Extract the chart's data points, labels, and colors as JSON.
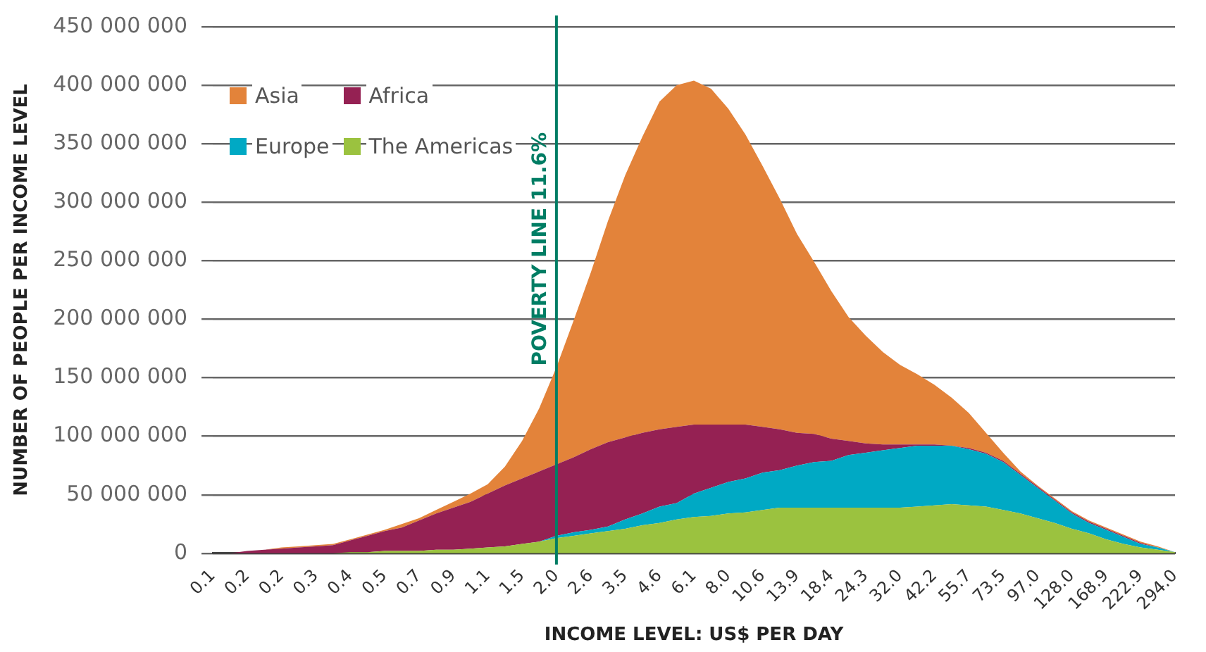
{
  "chart_data": {
    "type": "area",
    "ylabel": "NUMBER OF PEOPLE PER INCOME LEVEL",
    "xlabel": "INCOME LEVEL: US$ PER DAY",
    "categories": [
      "0.1",
      null,
      "0.2",
      null,
      "0.2",
      null,
      "0.3",
      null,
      "0.4",
      null,
      "0.5",
      null,
      "0.7",
      null,
      "0.9",
      null,
      "1.1",
      null,
      "1.5",
      null,
      "2.0",
      null,
      "2.6",
      null,
      "3.5",
      null,
      "4.6",
      null,
      "6.1",
      null,
      "8.0",
      null,
      "10.6",
      null,
      "13.9",
      null,
      "18.4",
      null,
      "24.3",
      null,
      "32.0",
      null,
      "42.2",
      null,
      "55.7",
      null,
      "73.5",
      null,
      "97.0",
      null,
      "128.0",
      null,
      "168.9",
      null,
      "222.9",
      null,
      "294.0"
    ],
    "stacked": true,
    "series": [
      {
        "name": "The Americas",
        "color": "#9bc23f",
        "values": [
          0,
          0,
          0,
          0,
          0,
          0,
          0,
          0,
          1000000,
          1000000,
          2000000,
          2000000,
          2000000,
          3000000,
          3000000,
          4000000,
          5000000,
          6000000,
          8000000,
          10000000,
          13000000,
          15000000,
          17000000,
          19000000,
          21000000,
          24000000,
          26000000,
          29000000,
          31000000,
          32000000,
          34000000,
          35000000,
          37000000,
          39000000,
          39000000,
          39000000,
          39000000,
          39000000,
          39000000,
          39000000,
          39000000,
          40000000,
          41000000,
          42000000,
          41000000,
          40000000,
          37000000,
          34000000,
          30000000,
          26000000,
          21000000,
          17000000,
          12000000,
          8000000,
          5000000,
          3000000,
          1000000
        ]
      },
      {
        "name": "Europe",
        "color": "#00a9c4",
        "values": [
          0,
          0,
          0,
          0,
          0,
          0,
          0,
          0,
          0,
          0,
          0,
          0,
          0,
          0,
          0,
          0,
          0,
          0,
          0,
          0,
          2000000,
          3000000,
          3000000,
          4000000,
          8000000,
          10000000,
          14000000,
          14000000,
          20000000,
          24000000,
          27000000,
          29000000,
          32000000,
          32000000,
          36000000,
          39000000,
          40000000,
          45000000,
          47000000,
          49000000,
          51000000,
          52000000,
          51000000,
          50000000,
          48000000,
          45000000,
          41000000,
          33000000,
          26000000,
          19000000,
          13000000,
          9000000,
          8000000,
          6000000,
          3000000,
          2000000,
          0
        ]
      },
      {
        "name": "Africa",
        "color": "#952153",
        "values": [
          0,
          0,
          2000000,
          3000000,
          4000000,
          5000000,
          6000000,
          7000000,
          10000000,
          14000000,
          17000000,
          20000000,
          26000000,
          31000000,
          36000000,
          40000000,
          46000000,
          52000000,
          56000000,
          60000000,
          61000000,
          64000000,
          69000000,
          72000000,
          70000000,
          69000000,
          66000000,
          65000000,
          59000000,
          54000000,
          49000000,
          46000000,
          39000000,
          35000000,
          28000000,
          24000000,
          19000000,
          12000000,
          8000000,
          5000000,
          3000000,
          1000000,
          1000000,
          0,
          1000000,
          1000000,
          1000000,
          1000000,
          1000000,
          1000000,
          1000000,
          1000000,
          1000000,
          1000000,
          1000000,
          0,
          0
        ]
      },
      {
        "name": "Asia",
        "color": "#e3833a",
        "values": [
          0,
          0,
          0,
          0,
          1000000,
          1000000,
          1000000,
          1000000,
          1000000,
          1000000,
          1000000,
          3000000,
          2000000,
          3000000,
          5000000,
          7000000,
          8000000,
          16000000,
          32000000,
          54000000,
          83000000,
          117000000,
          151000000,
          189000000,
          224000000,
          253000000,
          280000000,
          292000000,
          294000000,
          287000000,
          270000000,
          248000000,
          223000000,
          197000000,
          170000000,
          147000000,
          126000000,
          106000000,
          92000000,
          79000000,
          68000000,
          60000000,
          51000000,
          41000000,
          30000000,
          17000000,
          7000000,
          2000000,
          1000000,
          1000000,
          1000000,
          1000000,
          1000000,
          1000000,
          1000000,
          1000000,
          0
        ]
      }
    ],
    "ylim": [
      0,
      450000000
    ],
    "yticks": [
      0,
      {
        "value": 50000000,
        "label": "50 000 000"
      },
      {
        "value": 100000000,
        "label": "100 000 000"
      },
      {
        "value": 150000000,
        "label": "150 000 000"
      },
      {
        "value": 200000000,
        "label": "200 000 000"
      },
      {
        "value": 250000000,
        "label": "250 000 000"
      },
      {
        "value": 300000000,
        "label": "300 000 000"
      },
      {
        "value": 350000000,
        "label": "350 000 000"
      },
      {
        "value": 400000000,
        "label": "400 000 000"
      },
      {
        "value": 450000000,
        "label": "450 000 000"
      }
    ],
    "grid": "y",
    "legend": "top left",
    "ref_lines": [
      {
        "axis": "x",
        "value": "2.0",
        "label": "POVERTY LINE 11.6%",
        "color": "#007d64"
      }
    ]
  }
}
